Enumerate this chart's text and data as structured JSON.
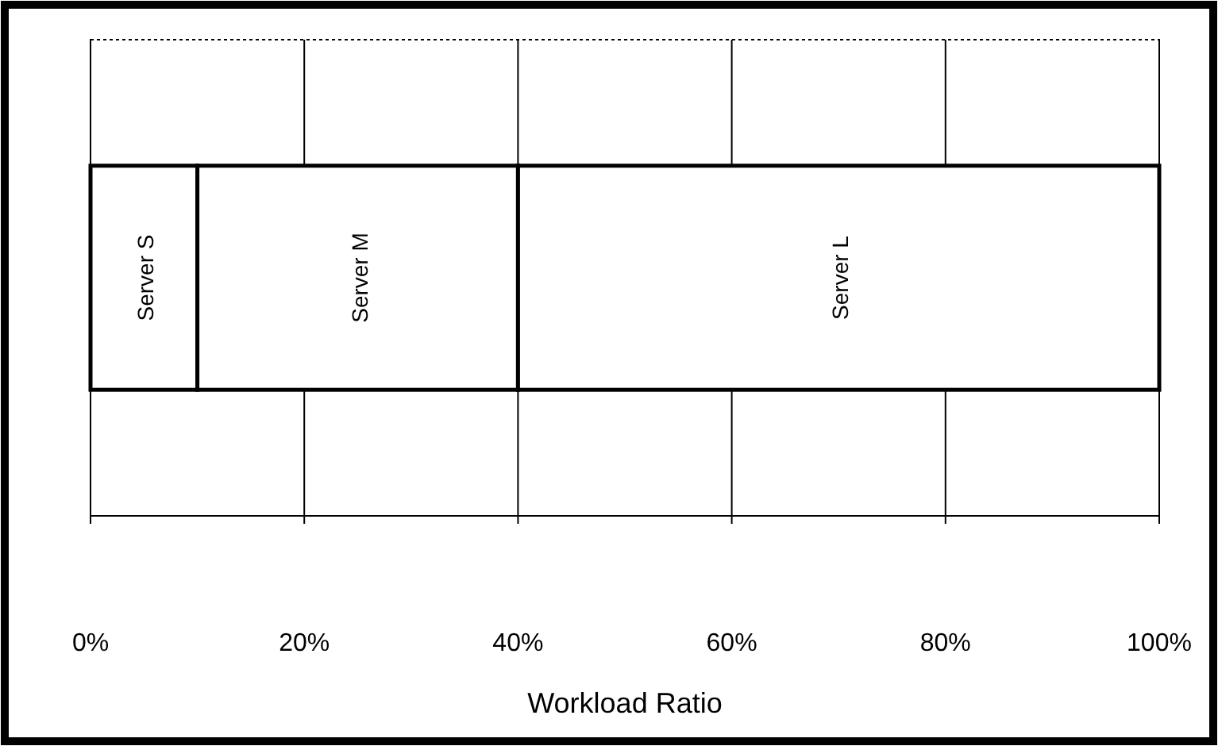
{
  "chart_data": {
    "type": "bar",
    "orientation": "horizontal",
    "stacked": true,
    "categories": [
      null
    ],
    "series": [
      {
        "name": "Server S",
        "color": "#ffffff",
        "values": [
          10
        ]
      },
      {
        "name": "Server M",
        "color": "#ffffff",
        "values": [
          30
        ]
      },
      {
        "name": "Server L",
        "color": "#ffffff",
        "values": [
          60
        ]
      }
    ],
    "xlabel": "Workload Ratio",
    "xlim": [
      0,
      100
    ],
    "xticks": [
      {
        "value": 0,
        "label": "0%"
      },
      {
        "value": 20,
        "label": "20%"
      },
      {
        "value": 40,
        "label": "40%"
      },
      {
        "value": 60,
        "label": "60%"
      },
      {
        "value": 80,
        "label": "80%"
      },
      {
        "value": 100,
        "label": "100%"
      }
    ],
    "grid": "x",
    "tick_labels": "x"
  }
}
